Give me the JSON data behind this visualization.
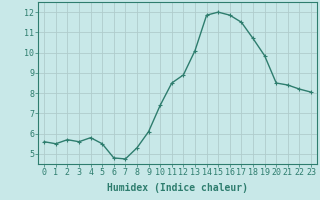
{
  "x": [
    0,
    1,
    2,
    3,
    4,
    5,
    6,
    7,
    8,
    9,
    10,
    11,
    12,
    13,
    14,
    15,
    16,
    17,
    18,
    19,
    20,
    21,
    22,
    23
  ],
  "y": [
    5.6,
    5.5,
    5.7,
    5.6,
    5.8,
    5.5,
    4.8,
    4.75,
    5.3,
    6.1,
    7.4,
    8.5,
    8.9,
    10.1,
    11.85,
    12.0,
    11.85,
    11.5,
    10.7,
    9.85,
    8.5,
    8.4,
    8.2,
    8.05
  ],
  "line_color": "#2e7d6e",
  "marker": "+",
  "marker_size": 3,
  "bg_color": "#c8e8e8",
  "grid_color": "#b0cccc",
  "xlabel": "Humidex (Indice chaleur)",
  "xlim": [
    -0.5,
    23.5
  ],
  "ylim": [
    4.5,
    12.5
  ],
  "yticks": [
    5,
    6,
    7,
    8,
    9,
    10,
    11,
    12
  ],
  "xticks": [
    0,
    1,
    2,
    3,
    4,
    5,
    6,
    7,
    8,
    9,
    10,
    11,
    12,
    13,
    14,
    15,
    16,
    17,
    18,
    19,
    20,
    21,
    22,
    23
  ],
  "tick_color": "#2e7d6e",
  "label_color": "#2e7d6e",
  "xlabel_fontsize": 7,
  "tick_fontsize": 6,
  "line_width": 1.0,
  "marker_edge_width": 0.8
}
